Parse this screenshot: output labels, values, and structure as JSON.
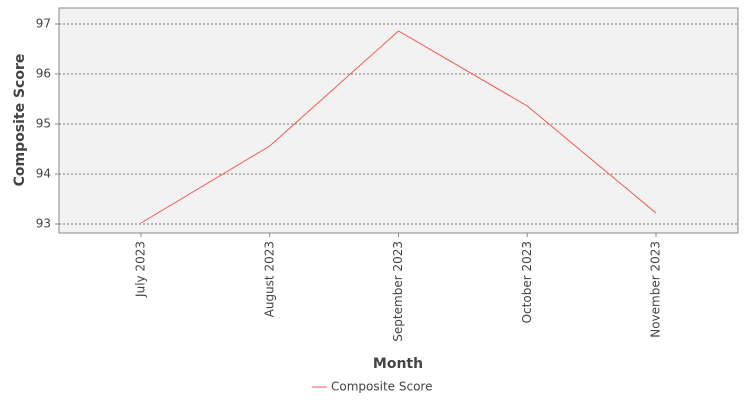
{
  "chart_data": {
    "type": "line",
    "x_label": "Month",
    "y_label": "Composite Score",
    "categories": [
      "July 2023",
      "August 2023",
      "September 2023",
      "October 2023",
      "November 2023"
    ],
    "series": [
      {
        "name": "Composite Score",
        "color": "#f05a50",
        "values": [
          93.02,
          94.56,
          96.86,
          95.36,
          93.22
        ]
      }
    ],
    "ylim": [
      92.82,
      97.32
    ],
    "yticks": [
      93,
      94,
      95,
      96,
      97
    ],
    "grid": true,
    "legend": "bottom"
  }
}
